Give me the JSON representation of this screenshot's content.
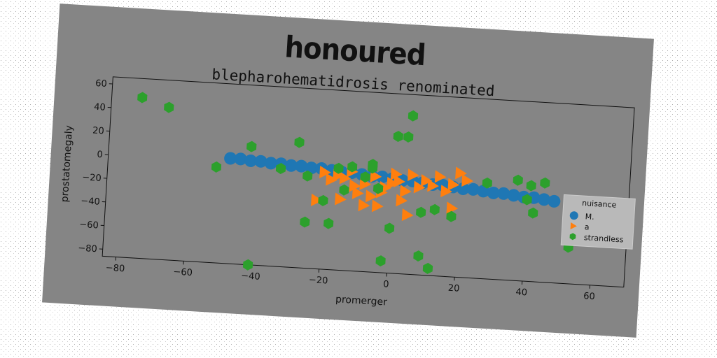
{
  "suptitle": "honoured",
  "chart_data": {
    "type": "scatter",
    "title": "blepharohematidrosis renominated",
    "xlabel": "promerger",
    "ylabel": "prostatomegaly",
    "xlim": [
      -84,
      70
    ],
    "ylim": [
      -86,
      66
    ],
    "xticks": [
      "−80",
      "−60",
      "−40",
      "−20",
      "0",
      "20",
      "40",
      "60"
    ],
    "xtick_values": [
      -80,
      -60,
      -40,
      -20,
      0,
      20,
      40,
      60
    ],
    "yticks": [
      "60",
      "40",
      "20",
      "0",
      "−20",
      "−40",
      "−60",
      "−80"
    ],
    "ytick_values": [
      60,
      40,
      20,
      0,
      -20,
      -40,
      -60,
      -80
    ],
    "grid": false,
    "legend": {
      "title": "nuisance",
      "placement": "right"
    },
    "colors": {
      "background": "#858585",
      "axis": "#111111",
      "legend_bg": "#b9b9b9"
    },
    "series": [
      {
        "name": "M.",
        "marker": "circle",
        "color": "#1f77b4",
        "points": [
          [
            -48,
            3
          ],
          [
            -45,
            3
          ],
          [
            -42,
            2
          ],
          [
            -39,
            2
          ],
          [
            -36,
            1
          ],
          [
            -33,
            1
          ],
          [
            -30,
            0
          ],
          [
            -27,
            0
          ],
          [
            -24,
            -1
          ],
          [
            -21,
            -1
          ],
          [
            -18,
            -2
          ],
          [
            -15,
            -3
          ],
          [
            -12,
            -3
          ],
          [
            -9,
            -4
          ],
          [
            -6,
            -5
          ],
          [
            -3,
            -5
          ],
          [
            0,
            -6
          ],
          [
            3,
            -7
          ],
          [
            6,
            -7
          ],
          [
            9,
            -8
          ],
          [
            12,
            -9
          ],
          [
            15,
            -9
          ],
          [
            18,
            -10
          ],
          [
            21,
            -11
          ],
          [
            24,
            -11
          ],
          [
            27,
            -12
          ],
          [
            30,
            -13
          ],
          [
            33,
            -13
          ],
          [
            36,
            -14
          ],
          [
            39,
            -15
          ],
          [
            42,
            -15
          ],
          [
            45,
            -16
          ],
          [
            48,
            -17
          ]
        ]
      },
      {
        "name": "a",
        "marker": "triangle-right",
        "color": "#ff7f0e",
        "points": [
          [
            -22,
            -28
          ],
          [
            -18,
            -10
          ],
          [
            -16,
            -6
          ],
          [
            -14,
            -8
          ],
          [
            -12,
            -2
          ],
          [
            -10,
            -20
          ],
          [
            -8,
            -12
          ],
          [
            -6,
            -22
          ],
          [
            -5,
            -5
          ],
          [
            -4,
            -30
          ],
          [
            -3,
            -18
          ],
          [
            -2,
            -14
          ],
          [
            0,
            -10
          ],
          [
            1,
            -2
          ],
          [
            2,
            -8
          ],
          [
            3,
            -24
          ],
          [
            4,
            -16
          ],
          [
            6,
            -2
          ],
          [
            8,
            -12
          ],
          [
            10,
            -6
          ],
          [
            12,
            -10
          ],
          [
            14,
            -2
          ],
          [
            16,
            -14
          ],
          [
            18,
            -8
          ],
          [
            20,
            2
          ],
          [
            -20,
            -4
          ],
          [
            -15,
            -26
          ],
          [
            -8,
            -30
          ],
          [
            5,
            -36
          ],
          [
            18,
            -28
          ],
          [
            22,
            -4
          ],
          [
            -11,
            -14
          ]
        ]
      },
      {
        "name": "strandless",
        "marker": "hexagon",
        "color": "#2ca02c",
        "points": [
          [
            -75,
            50
          ],
          [
            -67,
            43
          ],
          [
            -52,
            -5
          ],
          [
            -42,
            14
          ],
          [
            -41,
            -86
          ],
          [
            -33,
            -3
          ],
          [
            -28,
            20
          ],
          [
            -25,
            -8
          ],
          [
            -25,
            -47
          ],
          [
            -20,
            -28
          ],
          [
            -18,
            -47
          ],
          [
            -16,
            0
          ],
          [
            -14,
            -18
          ],
          [
            -12,
            2
          ],
          [
            -8,
            -6
          ],
          [
            -6,
            5
          ],
          [
            -6,
            2
          ],
          [
            -4,
            -15
          ],
          [
            -2,
            -76
          ],
          [
            0,
            -48
          ],
          [
            1,
            30
          ],
          [
            4,
            30
          ],
          [
            5,
            48
          ],
          [
            9,
            -33
          ],
          [
            9,
            -70
          ],
          [
            12,
            -80
          ],
          [
            13,
            -30
          ],
          [
            18,
            -35
          ],
          [
            28,
            -5
          ],
          [
            37,
            -1
          ],
          [
            40,
            -17
          ],
          [
            41,
            -5
          ],
          [
            42,
            -28
          ],
          [
            45,
            -2
          ],
          [
            53,
            -55
          ]
        ]
      }
    ]
  }
}
